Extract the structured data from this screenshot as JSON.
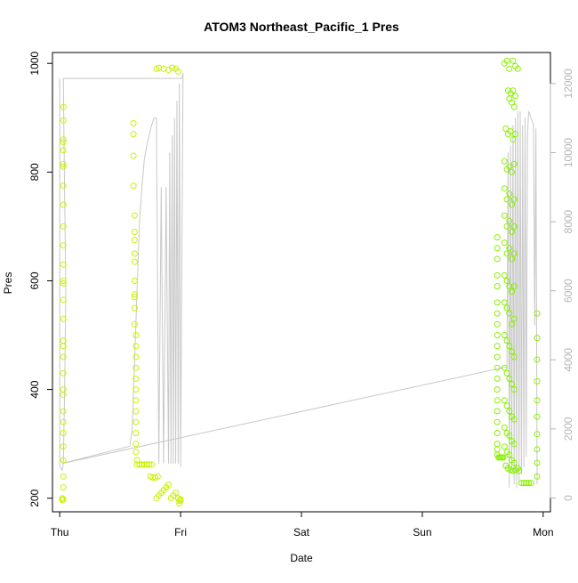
{
  "chart_data": {
    "type": "scatter",
    "title": "ATOM3 Northeast_Pacific_1 Pres",
    "xlabel": "Date",
    "ylabel": "Pres",
    "x_axis": {
      "ticks": [
        {
          "label": "Thu",
          "value": 0
        },
        {
          "label": "Fri",
          "value": 1
        },
        {
          "label": "Sat",
          "value": 2
        },
        {
          "label": "Sun",
          "value": 3
        },
        {
          "label": "Mon",
          "value": 4
        }
      ],
      "range": [
        -0.06,
        4.06
      ]
    },
    "y_left": {
      "ticks": [
        200,
        400,
        600,
        800,
        1000
      ],
      "range": [
        175,
        1020
      ]
    },
    "y_right": {
      "ticks": [
        0,
        2000,
        4000,
        6000,
        8000,
        10000,
        12000
      ],
      "range": [
        -400,
        12900
      ],
      "color": "#b5b5b5"
    },
    "grid": false,
    "colors": {
      "points_early": "#ccf000",
      "points_late": "#88f000",
      "line": "#c8c8c8"
    },
    "line_series": {
      "axis": "right",
      "points": [
        [
          0.0,
          12150
        ],
        [
          0.0,
          900
        ],
        [
          0.02,
          800
        ],
        [
          0.03,
          1000
        ],
        [
          0.04,
          3000
        ],
        [
          0.05,
          6000
        ],
        [
          0.04,
          9000
        ],
        [
          0.03,
          12150
        ],
        [
          1.0,
          12150
        ],
        [
          1.01,
          12150
        ],
        [
          1.02,
          12300
        ],
        [
          1.0,
          900
        ],
        [
          0.99,
          12000
        ],
        [
          0.98,
          1000
        ],
        [
          0.97,
          11500
        ],
        [
          0.96,
          1000
        ],
        [
          0.95,
          11000
        ],
        [
          0.94,
          1000
        ],
        [
          0.93,
          10500
        ],
        [
          0.92,
          1000
        ],
        [
          0.91,
          10000
        ],
        [
          0.9,
          1000
        ],
        [
          0.88,
          9000
        ],
        [
          0.86,
          1000
        ],
        [
          0.84,
          9000
        ],
        [
          0.82,
          1000
        ],
        [
          0.8,
          11000
        ],
        [
          0.78,
          11000
        ],
        [
          0.76,
          10800
        ],
        [
          0.74,
          10500
        ],
        [
          0.72,
          10200
        ],
        [
          0.7,
          9800
        ],
        [
          0.68,
          9000
        ],
        [
          0.66,
          8000
        ],
        [
          0.64,
          6000
        ],
        [
          0.62,
          4000
        ],
        [
          0.6,
          2000
        ],
        [
          0.58,
          1500
        ],
        [
          0.02,
          1000
        ],
        [
          3.7,
          3800
        ],
        [
          3.71,
          10000
        ],
        [
          3.72,
          300
        ],
        [
          3.73,
          10200
        ],
        [
          3.74,
          800
        ],
        [
          3.75,
          10800
        ],
        [
          3.76,
          400
        ],
        [
          3.77,
          11000
        ],
        [
          3.78,
          300
        ],
        [
          3.79,
          11200
        ],
        [
          3.8,
          500
        ],
        [
          3.81,
          11200
        ],
        [
          3.82,
          700
        ],
        [
          3.83,
          10800
        ],
        [
          3.84,
          900
        ],
        [
          3.85,
          11000
        ],
        [
          3.86,
          1200
        ],
        [
          3.87,
          10500
        ],
        [
          3.88,
          11200
        ],
        [
          3.9,
          11000
        ],
        [
          3.92,
          10800
        ],
        [
          3.93,
          5000
        ],
        [
          3.94,
          10700
        ],
        [
          3.95,
          400
        ]
      ]
    },
    "series": [
      {
        "points": [
          [
            0.02,
            197
          ],
          [
            0.02,
            200
          ],
          [
            0.03,
            198
          ],
          [
            0.03,
            220
          ],
          [
            0.03,
            240
          ],
          [
            0.03,
            270
          ],
          [
            0.03,
            295
          ],
          [
            0.03,
            320
          ],
          [
            0.03,
            340
          ],
          [
            0.03,
            360
          ],
          [
            0.03,
            390
          ],
          [
            0.03,
            400
          ],
          [
            0.03,
            430
          ],
          [
            0.03,
            460
          ],
          [
            0.03,
            480
          ],
          [
            0.03,
            490
          ],
          [
            0.03,
            530
          ],
          [
            0.03,
            565
          ],
          [
            0.03,
            595
          ],
          [
            0.03,
            600
          ],
          [
            0.03,
            630
          ],
          [
            0.03,
            665
          ],
          [
            0.03,
            700
          ],
          [
            0.03,
            740
          ],
          [
            0.03,
            775
          ],
          [
            0.03,
            810
          ],
          [
            0.03,
            815
          ],
          [
            0.03,
            840
          ],
          [
            0.03,
            855
          ],
          [
            0.03,
            860
          ],
          [
            0.03,
            895
          ],
          [
            0.03,
            920
          ],
          [
            0.61,
            890
          ],
          [
            0.61,
            870
          ],
          [
            0.61,
            830
          ],
          [
            0.61,
            775
          ],
          [
            0.62,
            720
          ],
          [
            0.62,
            690
          ],
          [
            0.62,
            675
          ],
          [
            0.62,
            650
          ],
          [
            0.62,
            635
          ],
          [
            0.62,
            600
          ],
          [
            0.62,
            575
          ],
          [
            0.62,
            570
          ],
          [
            0.62,
            550
          ],
          [
            0.62,
            520
          ],
          [
            0.63,
            500
          ],
          [
            0.63,
            480
          ],
          [
            0.63,
            460
          ],
          [
            0.63,
            440
          ],
          [
            0.63,
            420
          ],
          [
            0.63,
            400
          ],
          [
            0.63,
            380
          ],
          [
            0.63,
            360
          ],
          [
            0.63,
            340
          ],
          [
            0.63,
            320
          ],
          [
            0.63,
            300
          ],
          [
            0.63,
            285
          ],
          [
            0.64,
            270
          ],
          [
            0.64,
            262
          ],
          [
            0.66,
            262
          ],
          [
            0.68,
            262
          ],
          [
            0.7,
            262
          ],
          [
            0.72,
            262
          ],
          [
            0.74,
            262
          ],
          [
            0.76,
            262
          ],
          [
            0.75,
            240
          ],
          [
            0.77,
            238
          ],
          [
            0.79,
            238
          ],
          [
            0.81,
            240
          ],
          [
            0.8,
            990
          ],
          [
            0.82,
            992
          ],
          [
            0.86,
            990
          ],
          [
            0.9,
            988
          ],
          [
            0.93,
            992
          ],
          [
            0.96,
            990
          ],
          [
            0.98,
            985
          ],
          [
            0.8,
            200
          ],
          [
            0.82,
            205
          ],
          [
            0.84,
            210
          ],
          [
            0.86,
            215
          ],
          [
            0.88,
            220
          ],
          [
            0.9,
            225
          ],
          [
            0.92,
            200
          ],
          [
            0.94,
            205
          ],
          [
            0.96,
            210
          ],
          [
            0.98,
            200
          ],
          [
            1.0,
            198
          ],
          [
            1.0,
            196
          ],
          [
            0.99,
            195
          ],
          [
            0.99,
            190
          ]
        ],
        "color": "#ccf000"
      },
      {
        "points": [
          [
            3.62,
            680
          ],
          [
            3.62,
            660
          ],
          [
            3.62,
            640
          ],
          [
            3.62,
            610
          ],
          [
            3.62,
            590
          ],
          [
            3.62,
            560
          ],
          [
            3.62,
            540
          ],
          [
            3.62,
            520
          ],
          [
            3.62,
            500
          ],
          [
            3.62,
            480
          ],
          [
            3.62,
            460
          ],
          [
            3.62,
            440
          ],
          [
            3.62,
            420
          ],
          [
            3.62,
            400
          ],
          [
            3.62,
            380
          ],
          [
            3.62,
            360
          ],
          [
            3.62,
            340
          ],
          [
            3.62,
            320
          ],
          [
            3.62,
            300
          ],
          [
            3.62,
            290
          ],
          [
            3.62,
            280
          ],
          [
            3.63,
            275
          ],
          [
            3.64,
            275
          ],
          [
            3.65,
            275
          ],
          [
            3.66,
            275
          ],
          [
            3.67,
            275
          ],
          [
            3.68,
            1000
          ],
          [
            3.7,
            1005
          ],
          [
            3.72,
            990
          ],
          [
            3.75,
            1005
          ],
          [
            3.77,
            995
          ],
          [
            3.79,
            990
          ],
          [
            3.71,
            950
          ],
          [
            3.73,
            945
          ],
          [
            3.75,
            950
          ],
          [
            3.77,
            940
          ],
          [
            3.72,
            935
          ],
          [
            3.74,
            928
          ],
          [
            3.76,
            920
          ],
          [
            3.69,
            880
          ],
          [
            3.71,
            870
          ],
          [
            3.73,
            875
          ],
          [
            3.75,
            860
          ],
          [
            3.77,
            870
          ],
          [
            3.68,
            820
          ],
          [
            3.7,
            805
          ],
          [
            3.72,
            810
          ],
          [
            3.74,
            800
          ],
          [
            3.76,
            815
          ],
          [
            3.68,
            770
          ],
          [
            3.7,
            750
          ],
          [
            3.72,
            760
          ],
          [
            3.74,
            740
          ],
          [
            3.76,
            750
          ],
          [
            3.68,
            720
          ],
          [
            3.7,
            700
          ],
          [
            3.72,
            710
          ],
          [
            3.74,
            690
          ],
          [
            3.76,
            700
          ],
          [
            3.68,
            670
          ],
          [
            3.7,
            650
          ],
          [
            3.72,
            660
          ],
          [
            3.74,
            640
          ],
          [
            3.76,
            650
          ],
          [
            3.68,
            610
          ],
          [
            3.7,
            600
          ],
          [
            3.72,
            590
          ],
          [
            3.74,
            580
          ],
          [
            3.76,
            590
          ],
          [
            3.68,
            560
          ],
          [
            3.7,
            550
          ],
          [
            3.72,
            540
          ],
          [
            3.74,
            520
          ],
          [
            3.76,
            530
          ],
          [
            3.68,
            500
          ],
          [
            3.7,
            490
          ],
          [
            3.72,
            480
          ],
          [
            3.74,
            470
          ],
          [
            3.76,
            460
          ],
          [
            3.68,
            440
          ],
          [
            3.7,
            430
          ],
          [
            3.72,
            420
          ],
          [
            3.74,
            410
          ],
          [
            3.76,
            400
          ],
          [
            3.68,
            380
          ],
          [
            3.7,
            370
          ],
          [
            3.72,
            360
          ],
          [
            3.74,
            350
          ],
          [
            3.76,
            345
          ],
          [
            3.68,
            330
          ],
          [
            3.7,
            320
          ],
          [
            3.72,
            315
          ],
          [
            3.74,
            305
          ],
          [
            3.76,
            300
          ],
          [
            3.68,
            295
          ],
          [
            3.7,
            285
          ],
          [
            3.72,
            280
          ],
          [
            3.74,
            270
          ],
          [
            3.76,
            265
          ],
          [
            3.69,
            260
          ],
          [
            3.71,
            255
          ],
          [
            3.73,
            252
          ],
          [
            3.75,
            250
          ],
          [
            3.77,
            252
          ],
          [
            3.79,
            255
          ],
          [
            3.8,
            250
          ],
          [
            3.82,
            228
          ],
          [
            3.84,
            228
          ],
          [
            3.86,
            228
          ],
          [
            3.88,
            228
          ],
          [
            3.9,
            228
          ],
          [
            3.95,
            540
          ],
          [
            3.95,
            495
          ],
          [
            3.95,
            455
          ],
          [
            3.95,
            415
          ],
          [
            3.95,
            380
          ],
          [
            3.95,
            350
          ],
          [
            3.95,
            318
          ],
          [
            3.95,
            290
          ],
          [
            3.95,
            265
          ],
          [
            3.95,
            240
          ]
        ],
        "color": "#88f000"
      }
    ]
  }
}
